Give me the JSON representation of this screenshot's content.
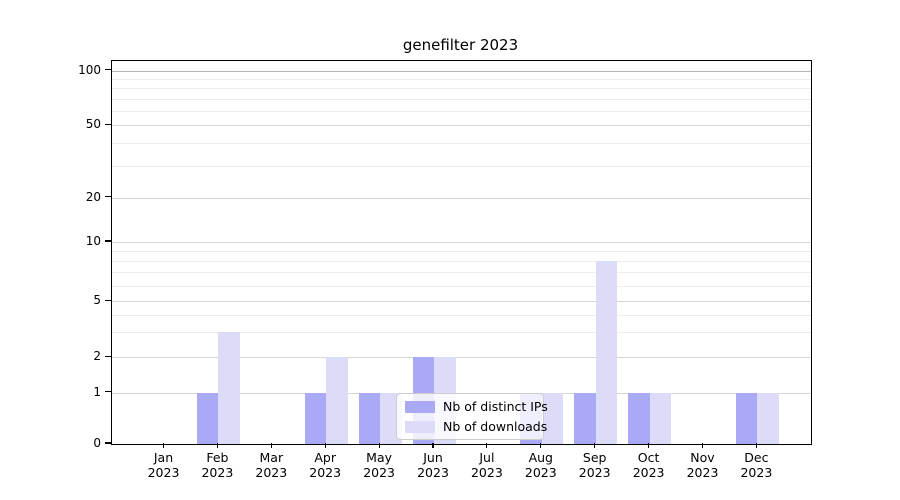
{
  "title": "genefilter 2023",
  "legend": {
    "items": [
      {
        "label": "Nb of distinct IPs"
      },
      {
        "label": "Nb of downloads"
      }
    ]
  },
  "chart_data": {
    "type": "bar",
    "title": "genefilter 2023",
    "categories": [
      "Jan 2023",
      "Feb 2023",
      "Mar 2023",
      "Apr 2023",
      "May 2023",
      "Jun 2023",
      "Jul 2023",
      "Aug 2023",
      "Sep 2023",
      "Oct 2023",
      "Nov 2023",
      "Dec 2023"
    ],
    "series": [
      {
        "name": "Nb of distinct IPs",
        "color": "#a9a9f6",
        "values": [
          0,
          1,
          0,
          1,
          1,
          2,
          0,
          1,
          1,
          1,
          0,
          1
        ]
      },
      {
        "name": "Nb of downloads",
        "color": "#dcdcf8",
        "values": [
          0,
          3,
          0,
          2,
          1,
          2,
          0,
          1,
          8,
          1,
          0,
          1
        ]
      }
    ],
    "yticks": [
      0,
      1,
      2,
      5,
      10,
      20,
      50,
      100
    ],
    "minor_gridlines": [
      3,
      4,
      6,
      7,
      8,
      9,
      30,
      40,
      60,
      70,
      80,
      90
    ],
    "yscale": "log-like",
    "ylim": [
      0,
      110
    ],
    "xlabel": "",
    "ylabel": "",
    "grid": true,
    "legend_position": "lower center"
  }
}
